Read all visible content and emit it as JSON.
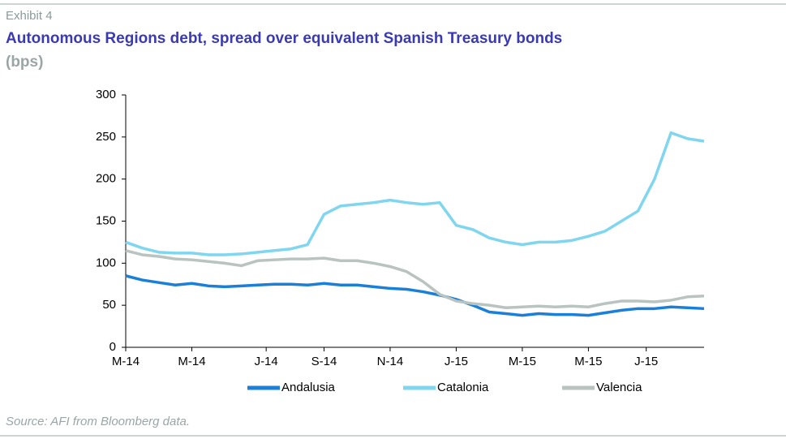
{
  "chart_data": {
    "type": "line",
    "exhibit": "Exhibit 4",
    "title": "Autonomous Regions debt, spread over equivalent Spanish Treasury bonds",
    "subtitle": "(bps)",
    "source": "Source: AFI from Bloomberg data.",
    "x": [
      0,
      2,
      4,
      6,
      8,
      10,
      12,
      14,
      16,
      18,
      20,
      22,
      24,
      26,
      28,
      30,
      32,
      34,
      36,
      38,
      40,
      42,
      44,
      46,
      48,
      50,
      52,
      54,
      56,
      58,
      60,
      62,
      64,
      66,
      68,
      70
    ],
    "series": [
      {
        "name": "Andalusia",
        "color": "#1a7fd9",
        "values": [
          85,
          80,
          77,
          74,
          76,
          73,
          72,
          73,
          74,
          75,
          75,
          74,
          76,
          74,
          74,
          72,
          70,
          69,
          66,
          62,
          57,
          50,
          42,
          40,
          38,
          40,
          39,
          39,
          38,
          41,
          44,
          46,
          46,
          48,
          47,
          46
        ]
      },
      {
        "name": "Catalonia",
        "color": "#7fd6ee",
        "values": [
          125,
          118,
          113,
          112,
          112,
          110,
          110,
          111,
          113,
          115,
          117,
          122,
          158,
          168,
          170,
          172,
          175,
          172,
          170,
          172,
          145,
          140,
          130,
          125,
          122,
          125,
          125,
          127,
          132,
          138,
          150,
          162,
          200,
          255,
          248,
          245
        ]
      },
      {
        "name": "Valencia",
        "color": "#b9c3c0",
        "values": [
          115,
          110,
          108,
          105,
          104,
          102,
          100,
          97,
          103,
          104,
          105,
          105,
          106,
          103,
          103,
          100,
          96,
          90,
          78,
          63,
          55,
          52,
          50,
          47,
          48,
          49,
          48,
          49,
          48,
          52,
          55,
          55,
          54,
          56,
          60,
          61
        ]
      }
    ],
    "xlim": [
      0,
      70
    ],
    "xticks": [
      {
        "value": 0,
        "label": "M-14"
      },
      {
        "value": 8,
        "label": "M-14"
      },
      {
        "value": 17,
        "label": "J-14"
      },
      {
        "value": 24,
        "label": "S-14"
      },
      {
        "value": 32,
        "label": "N-14"
      },
      {
        "value": 40,
        "label": "J-15"
      },
      {
        "value": 48,
        "label": "M-15"
      },
      {
        "value": 56,
        "label": "M-15"
      },
      {
        "value": 63,
        "label": "J-15"
      }
    ],
    "ylim": [
      0,
      300
    ],
    "yticks": [
      0,
      50,
      100,
      150,
      200,
      250,
      300
    ],
    "legend": "bottom"
  }
}
